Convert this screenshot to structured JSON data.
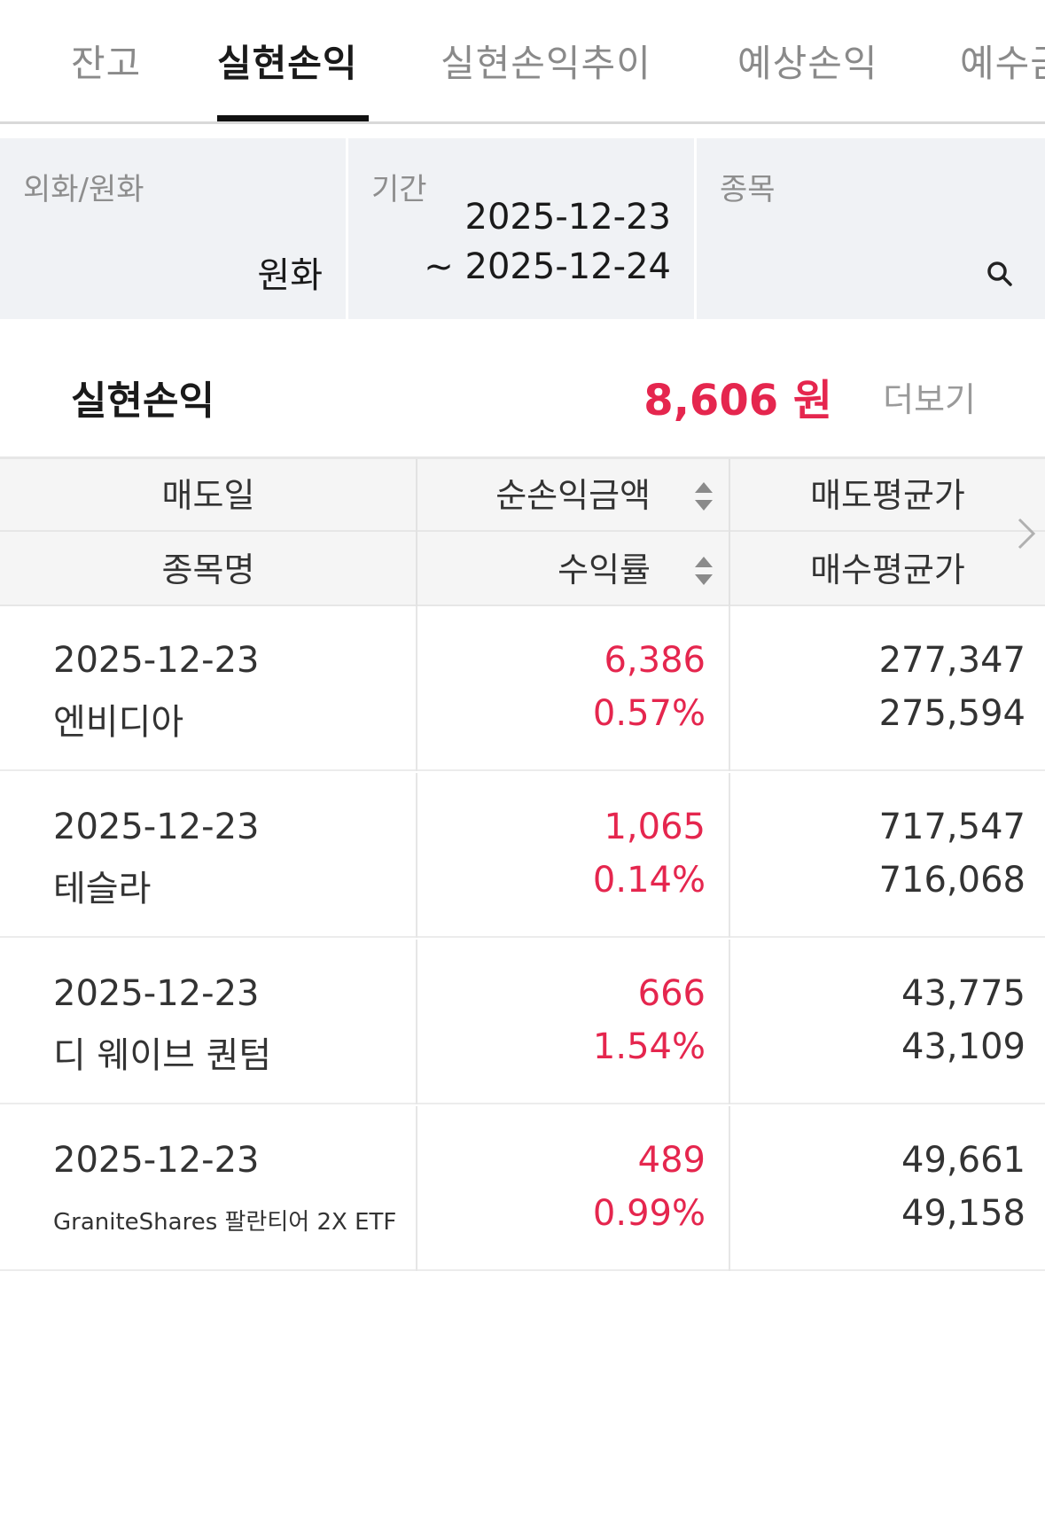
{
  "tabs": [
    {
      "label": "잔고",
      "active": false
    },
    {
      "label": "실현손익",
      "active": true
    },
    {
      "label": "실현손익추이",
      "active": false
    },
    {
      "label": "예상손익",
      "active": false
    },
    {
      "label": "예수금",
      "active": false
    }
  ],
  "filters": {
    "currency": {
      "label": "외화/원화",
      "value": "원화"
    },
    "period": {
      "label": "기간",
      "start": "2025-12-23",
      "end": "~ 2025-12-24"
    },
    "stock": {
      "label": "종목",
      "icon": "search-icon"
    }
  },
  "summary": {
    "title": "실현손익",
    "amount": "8,606 원",
    "more": "더보기",
    "accent_color": "#e5264e"
  },
  "table": {
    "headers": {
      "sell_date": "매도일",
      "net_pl": "순손익금액",
      "sell_avg": "매도평균가",
      "stock_name": "종목명",
      "return_rate": "수익률",
      "buy_avg": "매수평균가"
    },
    "rows": [
      {
        "date": "2025-12-23",
        "name": "엔비디아",
        "pl": "6,386",
        "rate": "0.57%",
        "sell": "277,347",
        "buy": "275,594"
      },
      {
        "date": "2025-12-23",
        "name": "테슬라",
        "pl": "1,065",
        "rate": "0.14%",
        "sell": "717,547",
        "buy": "716,068"
      },
      {
        "date": "2025-12-23",
        "name": "디 웨이브 퀀텀",
        "pl": "666",
        "rate": "1.54%",
        "sell": "43,775",
        "buy": "43,109"
      },
      {
        "date": "2025-12-23",
        "name": "GraniteShares 팔란티어 2X ETF",
        "pl": "489",
        "rate": "0.99%",
        "sell": "49,661",
        "buy": "49,158"
      }
    ]
  }
}
